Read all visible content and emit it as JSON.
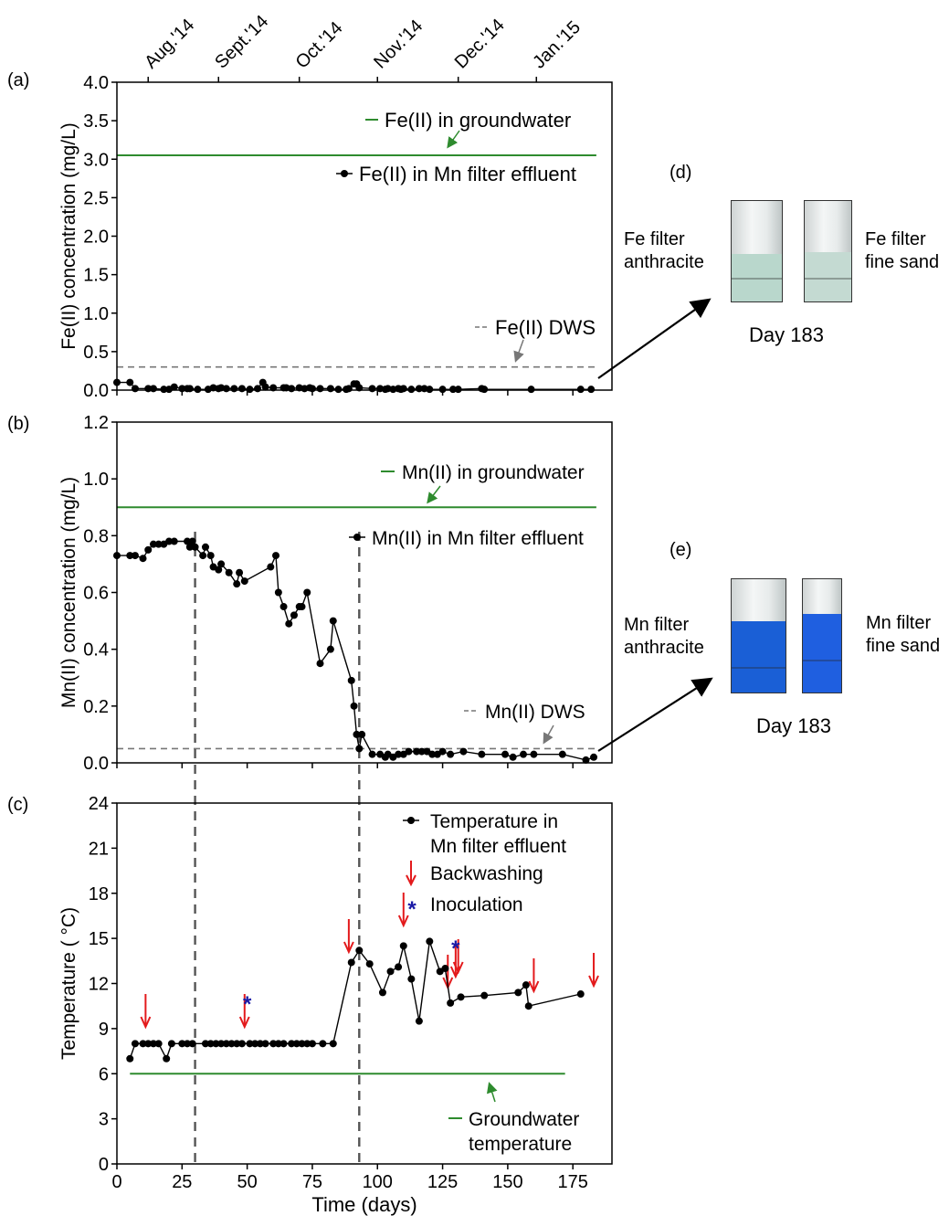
{
  "months": [
    "Aug.'14",
    "Sept.'14",
    "Oct.'14",
    "Nov.'14",
    "Dec.'14",
    "Jan.'15"
  ],
  "panel_letters": {
    "a": "(a)",
    "b": "(b)",
    "c": "(c)",
    "d": "(d)",
    "e": "(e)"
  },
  "x_axis": {
    "label": "Time (days)",
    "ticks": [
      "0",
      "25",
      "50",
      "75",
      "100",
      "125",
      "150",
      "175"
    ]
  },
  "photos": {
    "d": {
      "left_label": [
        "Fe filter",
        "anthracite"
      ],
      "right_label": [
        "Fe filter",
        "fine sand"
      ],
      "day": "Day 183"
    },
    "e": {
      "left_label": [
        "Mn filter",
        "anthracite"
      ],
      "right_label": [
        "Mn filter",
        "fine sand"
      ],
      "day": "Day 183"
    }
  },
  "colors": {
    "groundwater_line": "#2e8b2e",
    "dws_line": "#777777",
    "series": "#000000",
    "backwash_arrow": "#e31a1c",
    "inoculation_star": "#1a1aa6",
    "marker_lines": "#555555",
    "fe_vial_liquid": "#b9d7cc",
    "mn_vial_liquid": "#1a5fd6"
  },
  "chart_data": [
    {
      "type": "line",
      "ylabel": "Fe(II) concentration (mg/L)",
      "ylim": [
        0,
        4.0
      ],
      "xlim": [
        0,
        190
      ],
      "yticks": [
        "0.0",
        "0.5",
        "1.0",
        "1.5",
        "2.0",
        "2.5",
        "3.0",
        "3.5",
        "4.0"
      ],
      "groundwater": {
        "value": 3.05,
        "label": "Fe(II) in groundwater"
      },
      "dws": {
        "value": 0.3,
        "label": "Fe(II) DWS"
      },
      "series": [
        {
          "name": "Fe(II) in Mn filter effluent",
          "x": [
            0,
            5,
            7,
            12,
            14,
            18,
            20,
            22,
            25,
            27,
            28,
            31,
            35,
            37,
            39,
            40,
            42,
            45,
            48,
            51,
            54,
            56,
            57,
            60,
            64,
            65,
            67,
            70,
            72,
            74,
            75,
            78,
            82,
            85,
            88,
            89,
            91,
            92,
            93,
            98,
            101,
            103,
            104,
            106,
            108,
            109,
            110,
            113,
            116,
            118,
            120,
            125,
            129,
            131,
            140,
            141,
            159,
            178,
            182
          ],
          "y": [
            0.1,
            0.1,
            0.02,
            0.02,
            0.02,
            0.01,
            0.01,
            0.04,
            0.02,
            0.02,
            0.02,
            0.01,
            0.01,
            0.03,
            0.02,
            0.03,
            0.02,
            0.02,
            0.02,
            0.01,
            0.02,
            0.1,
            0.04,
            0.03,
            0.03,
            0.03,
            0.02,
            0.03,
            0.02,
            0.03,
            0.02,
            0.02,
            0.02,
            0.01,
            0.01,
            0.02,
            0.08,
            0.08,
            0.03,
            0.02,
            0.02,
            0.01,
            0.02,
            0.01,
            0.02,
            0.01,
            0.02,
            0.01,
            0.02,
            0.02,
            0.01,
            0.01,
            0.01,
            0.01,
            0.02,
            0.01,
            0.01,
            0.01,
            0.01
          ]
        }
      ]
    },
    {
      "type": "line",
      "ylabel": "Mn(II) concentration (mg/L)",
      "ylim": [
        0,
        1.2
      ],
      "xlim": [
        0,
        190
      ],
      "yticks": [
        "0.0",
        "0.2",
        "0.4",
        "0.6",
        "0.8",
        "1.0",
        "1.2"
      ],
      "groundwater": {
        "value": 0.9,
        "label": "Mn(II) in groundwater"
      },
      "dws": {
        "value": 0.05,
        "label": "Mn(II) DWS"
      },
      "series": [
        {
          "name": "Mn(II) in Mn filter effluent",
          "x": [
            0,
            5,
            7,
            10,
            12,
            14,
            16,
            18,
            20,
            22,
            27,
            28,
            29,
            30,
            33,
            34,
            36,
            37,
            39,
            40,
            43,
            46,
            47,
            49,
            59,
            61,
            62,
            64,
            66,
            68,
            70,
            71,
            73,
            78,
            82,
            83,
            90,
            91,
            92,
            93,
            94,
            98,
            101,
            103,
            104,
            106,
            108,
            110,
            112,
            115,
            117,
            119,
            121,
            123,
            125,
            128,
            133,
            140,
            149,
            152,
            156,
            160,
            171,
            180,
            183
          ],
          "y": [
            0.73,
            0.73,
            0.73,
            0.72,
            0.75,
            0.77,
            0.77,
            0.77,
            0.78,
            0.78,
            0.78,
            0.76,
            0.78,
            0.76,
            0.73,
            0.76,
            0.73,
            0.69,
            0.68,
            0.7,
            0.67,
            0.63,
            0.67,
            0.64,
            0.69,
            0.73,
            0.6,
            0.55,
            0.49,
            0.52,
            0.55,
            0.55,
            0.6,
            0.35,
            0.4,
            0.5,
            0.29,
            0.2,
            0.1,
            0.05,
            0.1,
            0.03,
            0.03,
            0.02,
            0.03,
            0.02,
            0.03,
            0.03,
            0.04,
            0.04,
            0.04,
            0.04,
            0.03,
            0.03,
            0.04,
            0.03,
            0.04,
            0.03,
            0.03,
            0.02,
            0.03,
            0.03,
            0.03,
            0.01,
            0.02
          ]
        }
      ]
    },
    {
      "type": "line",
      "ylabel": "Temperature ( °C)",
      "ylim": [
        0,
        24
      ],
      "xlim": [
        0,
        190
      ],
      "yticks": [
        "0",
        "3",
        "6",
        "9",
        "12",
        "15",
        "18",
        "21",
        "24"
      ],
      "groundwater": {
        "value": 6,
        "label": [
          "Groundwater",
          "temperature"
        ]
      },
      "series": [
        {
          "name": [
            "Temperature in",
            "Mn filter effluent"
          ],
          "x": [
            5,
            7,
            10,
            12,
            14,
            16,
            19,
            21,
            25,
            27,
            29,
            34,
            36,
            38,
            40,
            42,
            44,
            46,
            48,
            51,
            53,
            55,
            57,
            60,
            62,
            64,
            67,
            69,
            71,
            73,
            75,
            79,
            83,
            90,
            93,
            97,
            102,
            105,
            108,
            110,
            113,
            116,
            120,
            124,
            126,
            128,
            132,
            141,
            154,
            157,
            158,
            178
          ],
          "y": [
            7,
            8,
            8,
            8,
            8,
            8,
            7,
            8,
            8,
            8,
            8,
            8,
            8,
            8,
            8,
            8,
            8,
            8,
            8,
            8,
            8,
            8,
            8,
            8,
            8,
            8,
            8,
            8,
            8,
            8,
            8,
            8,
            8,
            13.4,
            14.2,
            13.3,
            11.4,
            12.8,
            13.1,
            14.5,
            12.3,
            9.5,
            14.8,
            12.8,
            13.0,
            10.7,
            11.1,
            11.2,
            11.4,
            11.9,
            10.5,
            11.3
          ]
        }
      ],
      "backwashing": {
        "label": "Backwashing",
        "days": [
          11,
          49,
          89,
          110,
          127,
          130,
          131,
          160,
          183
        ]
      },
      "inoculation": {
        "label": "Inoculation",
        "days": [
          50,
          130
        ]
      },
      "markers_days": [
        30,
        93
      ]
    }
  ]
}
